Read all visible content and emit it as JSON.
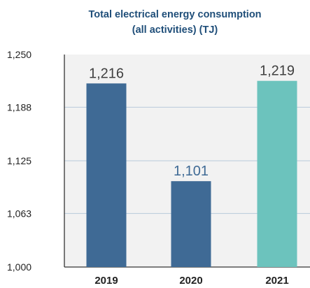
{
  "chart_data": {
    "type": "bar",
    "title_line1": "Total electrical energy consumption",
    "title_line2": "(all activities) (TJ)",
    "categories": [
      "2019",
      "2020",
      "2021"
    ],
    "values": [
      1216,
      1101,
      1219
    ],
    "value_labels": [
      "1,216",
      "1,101",
      "1,219"
    ],
    "ylim": [
      1000,
      1250
    ],
    "yticks": [
      1000,
      1063,
      1125,
      1188,
      1250
    ],
    "ytick_labels": [
      "1,000",
      "1,063",
      "1,125",
      "1,188",
      "1,250"
    ],
    "grid": true,
    "colors": {
      "bar_2019": "#3f6a95",
      "bar_2020": "#3f6a95",
      "bar_2021": "#6cc3bd",
      "label_2019": "#404040",
      "label_2020": "#3f6a95",
      "label_2021": "#404040",
      "axis": "#333333",
      "grid": "#b8cadb",
      "panel": "#f2f2f2",
      "title": "#1f4e79"
    }
  }
}
